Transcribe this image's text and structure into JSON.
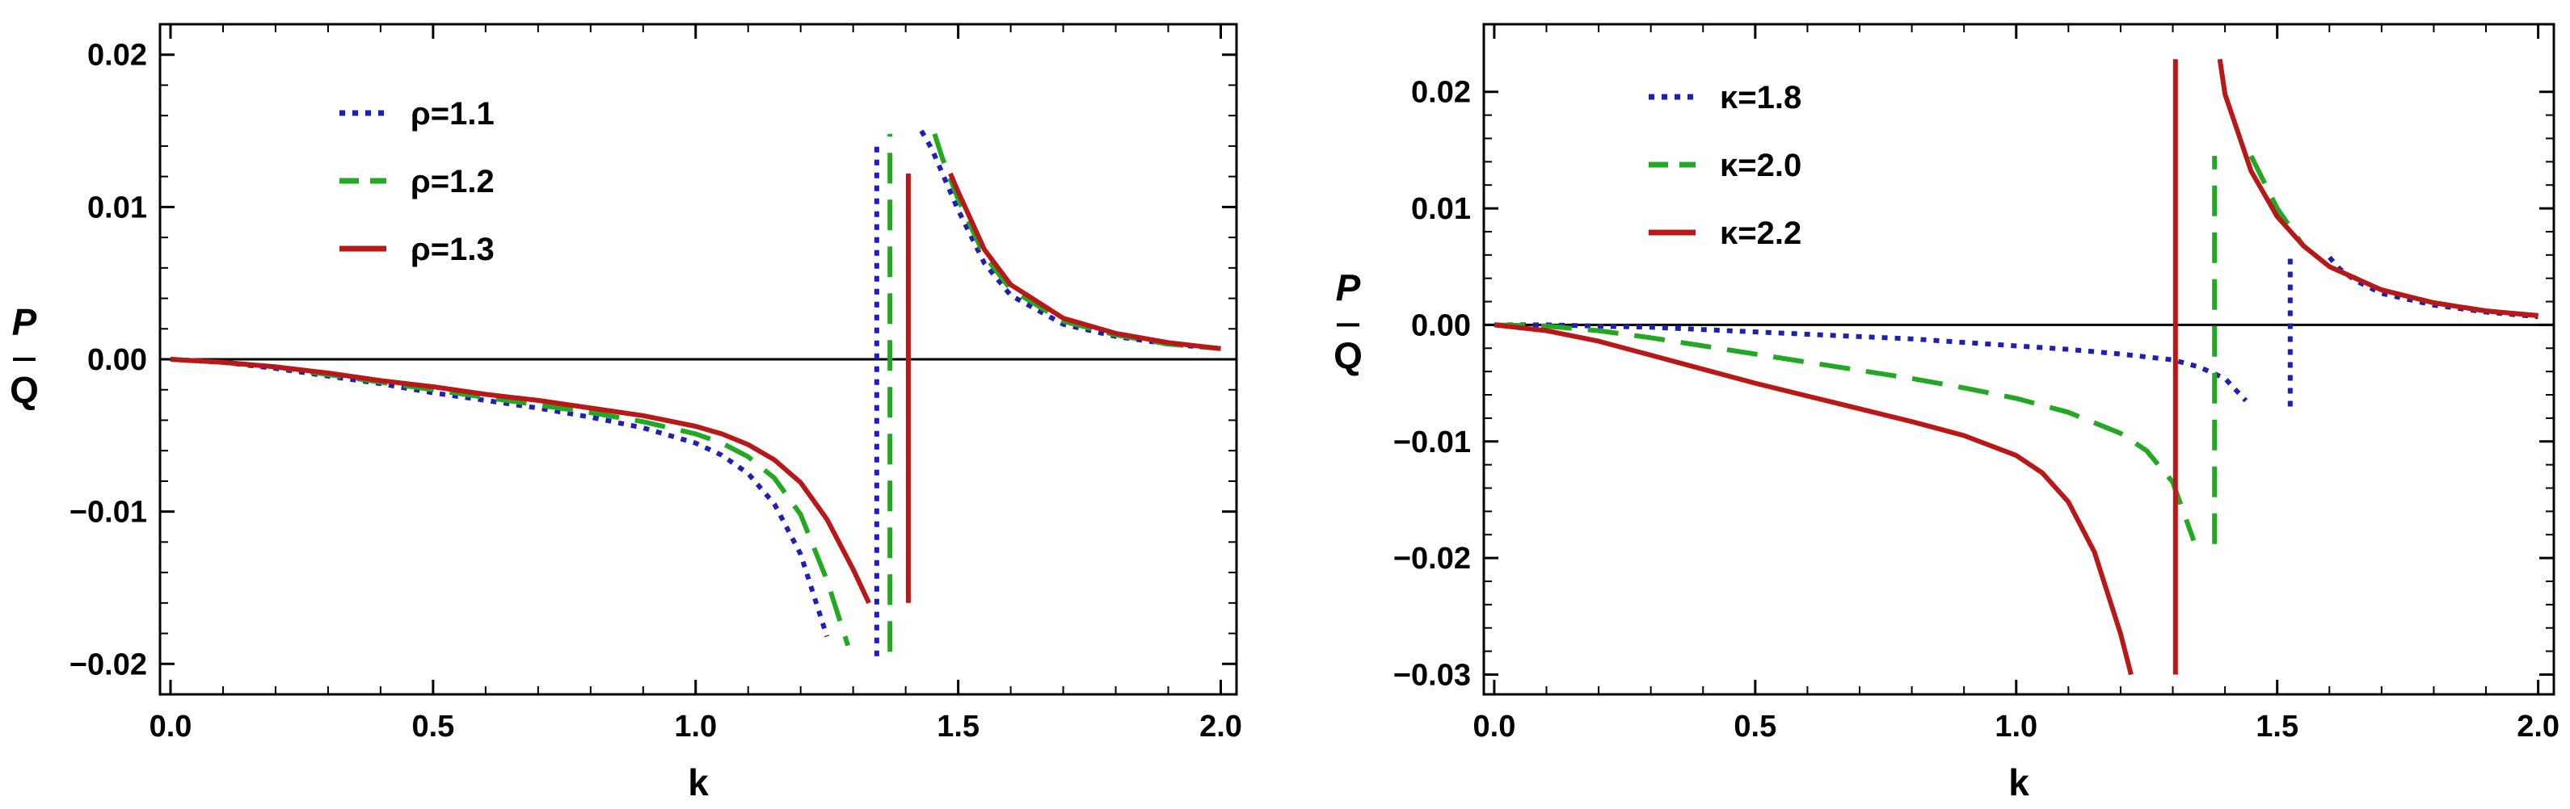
{
  "chart_data": [
    {
      "type": "line",
      "xlabel": "k",
      "ylabel_num": "P",
      "ylabel_den": "Q",
      "xlim": [
        -0.02,
        2.03
      ],
      "ylim": [
        -0.022,
        0.022
      ],
      "xticks": [
        0.0,
        0.5,
        1.0,
        1.5,
        2.0
      ],
      "xtick_labels": [
        "0.0",
        "0.5",
        "1.0",
        "1.5",
        "2.0"
      ],
      "yticks": [
        -0.02,
        -0.01,
        0.0,
        0.01,
        0.02
      ],
      "ytick_labels": [
        "−0.02",
        "−0.01",
        "0.00",
        "0.01",
        "0.02"
      ],
      "legend_position": "top-left",
      "series": [
        {
          "name": "ρ=1.1",
          "color": "#1f1fb8",
          "dash": "dotted",
          "segments": [
            {
              "x": [
                0.0,
                0.1,
                0.2,
                0.3,
                0.4,
                0.5,
                0.6,
                0.7,
                0.8,
                0.9,
                1.0,
                1.05,
                1.1,
                1.15,
                1.2,
                1.25
              ],
              "y": [
                0.0,
                -0.0002,
                -0.0006,
                -0.0011,
                -0.0016,
                -0.0022,
                -0.0027,
                -0.0032,
                -0.0038,
                -0.0045,
                -0.0055,
                -0.0063,
                -0.0075,
                -0.0095,
                -0.0128,
                -0.0182
              ]
            },
            {
              "x": [
                1.345,
                1.345
              ],
              "y": [
                -0.0195,
                0.0142
              ]
            },
            {
              "x": [
                1.43,
                1.45,
                1.5,
                1.55,
                1.6,
                1.7,
                1.8,
                1.9,
                2.0
              ],
              "y": [
                0.015,
                0.0138,
                0.0098,
                0.0063,
                0.0042,
                0.0023,
                0.0015,
                0.001,
                0.0007
              ]
            }
          ]
        },
        {
          "name": "ρ=1.2",
          "color": "#22a822",
          "dash": "dashed",
          "segments": [
            {
              "x": [
                0.0,
                0.1,
                0.2,
                0.3,
                0.4,
                0.5,
                0.6,
                0.7,
                0.8,
                0.9,
                1.0,
                1.05,
                1.1,
                1.15,
                1.2,
                1.25,
                1.29
              ],
              "y": [
                0.0,
                -0.0002,
                -0.0005,
                -0.001,
                -0.0015,
                -0.002,
                -0.0025,
                -0.003,
                -0.0035,
                -0.0041,
                -0.0049,
                -0.0055,
                -0.0064,
                -0.0078,
                -0.0102,
                -0.0145,
                -0.0188
              ]
            },
            {
              "x": [
                1.37,
                1.37
              ],
              "y": [
                -0.0192,
                0.0148
              ]
            },
            {
              "x": [
                1.455,
                1.47,
                1.5,
                1.55,
                1.6,
                1.7,
                1.8,
                1.9,
                2.0
              ],
              "y": [
                0.0148,
                0.0132,
                0.0105,
                0.0068,
                0.0046,
                0.0025,
                0.0016,
                0.001,
                0.0007
              ]
            }
          ]
        },
        {
          "name": "ρ=1.3",
          "color": "#b81818",
          "dash": "solid",
          "segments": [
            {
              "x": [
                0.0,
                0.1,
                0.2,
                0.3,
                0.4,
                0.5,
                0.6,
                0.7,
                0.8,
                0.9,
                1.0,
                1.05,
                1.1,
                1.15,
                1.2,
                1.25,
                1.3,
                1.33
              ],
              "y": [
                0.0,
                -0.0002,
                -0.0005,
                -0.0009,
                -0.0014,
                -0.0018,
                -0.0023,
                -0.0027,
                -0.0032,
                -0.0037,
                -0.0044,
                -0.0049,
                -0.0056,
                -0.0066,
                -0.0081,
                -0.0105,
                -0.0138,
                -0.016
              ]
            },
            {
              "x": [
                1.405,
                1.405
              ],
              "y": [
                -0.016,
                0.0122
              ]
            },
            {
              "x": [
                1.485,
                1.5,
                1.55,
                1.6,
                1.7,
                1.8,
                1.9,
                2.0
              ],
              "y": [
                0.0122,
                0.011,
                0.0072,
                0.0049,
                0.0027,
                0.0017,
                0.0011,
                0.0007
              ]
            }
          ]
        }
      ]
    },
    {
      "type": "line",
      "xlabel": "k",
      "ylabel_num": "P",
      "ylabel_den": "Q",
      "xlim": [
        -0.02,
        2.03
      ],
      "ylim": [
        -0.0317,
        0.0258
      ],
      "xticks": [
        0.0,
        0.5,
        1.0,
        1.5,
        2.0
      ],
      "xtick_labels": [
        "0.0",
        "0.5",
        "1.0",
        "1.5",
        "2.0"
      ],
      "yticks": [
        -0.03,
        -0.02,
        -0.01,
        0.0,
        0.01,
        0.02
      ],
      "ytick_labels": [
        "−0.03",
        "−0.02",
        "−0.01",
        "0.00",
        "0.01",
        "0.02"
      ],
      "legend_position": "top-left",
      "series": [
        {
          "name": "κ=1.8",
          "color": "#1f1fb8",
          "dash": "dotted",
          "segments": [
            {
              "x": [
                0.0,
                0.1,
                0.2,
                0.3,
                0.4,
                0.5,
                0.6,
                0.7,
                0.8,
                0.9,
                1.0,
                1.1,
                1.2,
                1.3,
                1.35,
                1.4,
                1.44
              ],
              "y": [
                0.0,
                0.0,
                -0.0001,
                -0.0002,
                -0.0004,
                -0.0006,
                -0.0008,
                -0.001,
                -0.0012,
                -0.0015,
                -0.0018,
                -0.0021,
                -0.0025,
                -0.003,
                -0.0036,
                -0.0046,
                -0.0065
              ]
            },
            {
              "x": [
                1.525,
                1.525
              ],
              "y": [
                -0.007,
                0.006
              ]
            },
            {
              "x": [
                1.6,
                1.62,
                1.65,
                1.7,
                1.8,
                1.9,
                2.0
              ],
              "y": [
                0.0058,
                0.0048,
                0.0038,
                0.0027,
                0.0017,
                0.0011,
                0.0007
              ]
            }
          ]
        },
        {
          "name": "κ=2.0",
          "color": "#22a822",
          "dash": "dashed",
          "segments": [
            {
              "x": [
                0.0,
                0.1,
                0.2,
                0.3,
                0.4,
                0.5,
                0.6,
                0.7,
                0.8,
                0.9,
                1.0,
                1.1,
                1.2,
                1.25,
                1.3,
                1.34
              ],
              "y": [
                0.0,
                -0.0001,
                -0.0005,
                -0.0011,
                -0.0018,
                -0.0025,
                -0.0032,
                -0.0039,
                -0.0046,
                -0.0054,
                -0.0063,
                -0.0075,
                -0.0093,
                -0.0108,
                -0.0135,
                -0.0185
              ]
            },
            {
              "x": [
                1.38,
                1.38
              ],
              "y": [
                -0.0188,
                0.0145
              ]
            },
            {
              "x": [
                1.45,
                1.5,
                1.55,
                1.6,
                1.7,
                1.8,
                1.9,
                2.0
              ],
              "y": [
                0.0145,
                0.01,
                0.0068,
                0.005,
                0.003,
                0.0019,
                0.0012,
                0.0008
              ]
            }
          ]
        },
        {
          "name": "κ=2.2",
          "color": "#b81818",
          "dash": "solid",
          "segments": [
            {
              "x": [
                0.0,
                0.1,
                0.2,
                0.3,
                0.4,
                0.5,
                0.6,
                0.7,
                0.8,
                0.9,
                1.0,
                1.05,
                1.1,
                1.15,
                1.2,
                1.22
              ],
              "y": [
                0.0,
                -0.0005,
                -0.0014,
                -0.0026,
                -0.0038,
                -0.005,
                -0.0061,
                -0.0072,
                -0.0083,
                -0.0095,
                -0.0112,
                -0.0127,
                -0.0152,
                -0.0195,
                -0.0265,
                -0.03
              ]
            },
            {
              "x": [
                1.305,
                1.305
              ],
              "y": [
                -0.03,
                0.0228
              ]
            },
            {
              "x": [
                1.39,
                1.4,
                1.45,
                1.5,
                1.55,
                1.6,
                1.7,
                1.8,
                1.9,
                2.0
              ],
              "y": [
                0.0228,
                0.0198,
                0.0132,
                0.0093,
                0.0068,
                0.005,
                0.003,
                0.0019,
                0.0012,
                0.0008
              ]
            }
          ]
        }
      ]
    }
  ]
}
